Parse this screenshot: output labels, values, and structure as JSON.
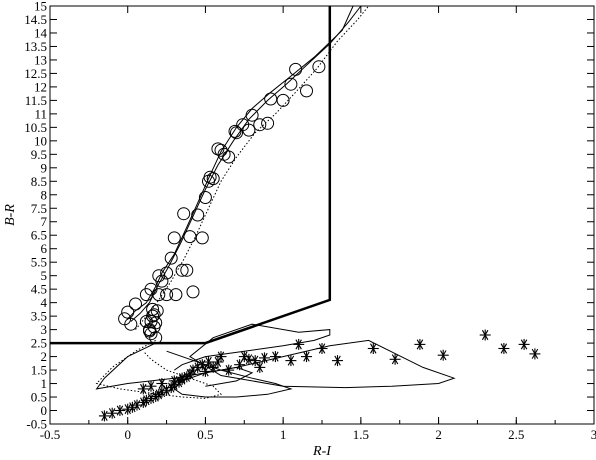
{
  "chart_data": {
    "type": "scatter",
    "title": "",
    "xlabel": "R-I",
    "ylabel": "B-R",
    "xlim": [
      -0.5,
      3
    ],
    "ylim": [
      -0.5,
      15
    ],
    "x_ticks": [
      "-0.5",
      "0",
      "0.5",
      "1",
      "1.5",
      "2",
      "2.5",
      "3"
    ],
    "y_ticks": [
      "-0.5",
      "0",
      "0.5",
      "1",
      "1.5",
      "2",
      "2.5",
      "3",
      "3.5",
      "4",
      "4.5",
      "5",
      "5.5",
      "6",
      "6.5",
      "7",
      "7.5",
      "8",
      "8.5",
      "9",
      "9.5",
      "10",
      "10.5",
      "11",
      "11.5",
      "12",
      "12.5",
      "13",
      "13.5",
      "14",
      "14.5",
      "15"
    ],
    "grid": false,
    "series": [
      {
        "marker": "circle",
        "x": [
          -0.02,
          0.0,
          0.05,
          0.12,
          0.14,
          0.15,
          0.17,
          0.16,
          0.18,
          0.15,
          0.17,
          0.2,
          0.12,
          0.15,
          0.2,
          0.25,
          0.28,
          0.3,
          0.22,
          0.25,
          0.31,
          0.35,
          0.38,
          0.4,
          0.36,
          0.45,
          0.5,
          0.52,
          0.55,
          0.58,
          0.62,
          0.65,
          0.7,
          0.78,
          0.8,
          0.85,
          0.9,
          0.92,
          1.0,
          1.05,
          1.08,
          1.15,
          1.23,
          0.02,
          0.18,
          0.14,
          0.16,
          0.19,
          0.42,
          0.48,
          0.53,
          0.6,
          0.69,
          0.74
        ],
        "y": [
          3.4,
          3.65,
          3.95,
          3.3,
          3.0,
          2.85,
          3.1,
          3.5,
          2.7,
          3.3,
          3.55,
          4.3,
          4.3,
          4.5,
          5.0,
          5.1,
          5.65,
          6.4,
          4.8,
          4.3,
          4.3,
          5.2,
          5.2,
          6.45,
          7.3,
          7.25,
          7.9,
          8.5,
          8.6,
          9.7,
          9.5,
          9.4,
          10.3,
          10.4,
          10.95,
          10.6,
          10.65,
          11.55,
          11.5,
          12.1,
          12.65,
          11.85,
          12.75,
          3.2,
          3.25,
          2.95,
          3.75,
          3.7,
          4.4,
          6.4,
          8.65,
          9.65,
          10.35,
          10.6
        ]
      },
      {
        "marker": "asterisk",
        "x": [
          -0.15,
          -0.1,
          -0.05,
          0.0,
          0.03,
          0.06,
          0.1,
          0.12,
          0.15,
          0.18,
          0.2,
          0.22,
          0.25,
          0.28,
          0.3,
          0.33,
          0.35,
          0.38,
          0.4,
          0.42,
          0.45,
          0.1,
          0.15,
          0.22,
          0.3,
          0.35,
          0.48,
          0.52,
          0.55,
          0.6,
          0.65,
          0.72,
          0.78,
          0.82,
          0.88,
          0.95,
          1.1,
          1.15,
          1.25,
          1.35,
          1.58,
          1.72,
          1.88,
          2.03,
          2.3,
          2.42,
          2.55,
          2.62,
          0.58,
          0.5,
          0.75,
          0.85,
          1.05
        ],
        "y": [
          -0.2,
          -0.1,
          0.0,
          0.05,
          0.12,
          0.2,
          0.3,
          0.38,
          0.45,
          0.52,
          0.6,
          0.68,
          0.75,
          0.85,
          0.95,
          1.05,
          1.15,
          1.25,
          1.35,
          1.5,
          1.6,
          0.8,
          0.9,
          1.0,
          1.1,
          1.2,
          1.7,
          1.8,
          1.6,
          2.0,
          1.5,
          1.7,
          1.9,
          1.85,
          1.95,
          2.0,
          2.45,
          2.0,
          2.3,
          1.85,
          2.3,
          1.9,
          2.45,
          2.05,
          2.8,
          2.3,
          2.45,
          2.1,
          1.8,
          1.45,
          2.0,
          1.6,
          1.85
        ]
      }
    ],
    "lines": [
      {
        "style": "thick",
        "x": [
          -0.5,
          0.5,
          1.3,
          1.3
        ],
        "y": [
          2.5,
          2.5,
          4.1,
          15
        ]
      },
      {
        "style": "solid",
        "x": [
          0.0,
          0.05,
          0.12,
          0.18,
          0.22,
          0.3,
          0.38,
          0.45,
          0.52,
          0.6,
          0.7,
          0.8,
          0.92,
          1.05,
          1.2,
          1.38,
          1.45
        ],
        "y": [
          3.4,
          3.7,
          4.0,
          4.6,
          5.1,
          5.8,
          6.8,
          7.7,
          8.6,
          9.6,
          10.5,
          11.2,
          11.8,
          12.4,
          13.1,
          14.1,
          15.0
        ]
      },
      {
        "style": "solid",
        "x": [
          0.02,
          0.08,
          0.14,
          0.2,
          0.26,
          0.34,
          0.42,
          0.5,
          0.58,
          0.68,
          0.78,
          0.9,
          1.02,
          1.15,
          1.3,
          1.42,
          1.5
        ],
        "y": [
          3.3,
          3.6,
          4.0,
          4.7,
          5.3,
          6.2,
          7.2,
          8.2,
          9.1,
          10.0,
          10.8,
          11.5,
          12.1,
          12.8,
          13.6,
          14.4,
          15.0
        ]
      },
      {
        "style": "dotted",
        "x": [
          0.05,
          0.12,
          0.2,
          0.28,
          0.36,
          0.44,
          0.52,
          0.6,
          0.7,
          0.82,
          0.95,
          1.08,
          1.22,
          1.35,
          1.48,
          1.55
        ],
        "y": [
          3.0,
          3.5,
          4.1,
          4.8,
          5.6,
          6.5,
          7.5,
          8.5,
          9.4,
          10.3,
          11.0,
          11.8,
          12.7,
          13.7,
          14.5,
          15.0
        ]
      },
      {
        "style": "solid",
        "x": [
          0.18,
          0.0,
          -0.15,
          -0.2,
          0.0,
          0.3,
          0.7,
          1.0,
          1.3,
          1.55,
          1.9,
          2.1,
          2.0,
          1.7,
          1.4,
          1.0,
          0.6,
          0.4,
          0.55,
          0.8,
          1.1,
          1.3,
          1.3,
          1.2,
          1.0,
          0.75,
          0.5,
          0.35,
          0.3
        ],
        "y": [
          2.5,
          2.0,
          1.2,
          0.8,
          1.0,
          1.2,
          1.6,
          2.0,
          2.4,
          2.6,
          1.6,
          1.2,
          1.0,
          0.9,
          0.85,
          0.9,
          1.3,
          2.0,
          2.7,
          3.2,
          2.9,
          3.0,
          2.8,
          2.6,
          2.4,
          2.2,
          2.0,
          1.7,
          1.5
        ]
      },
      {
        "style": "solid",
        "x": [
          0.25,
          0.4,
          0.6,
          0.8,
          0.95,
          1.05,
          0.9,
          0.7,
          0.5,
          0.35,
          0.3,
          0.35,
          0.5,
          0.7,
          0.8,
          0.7,
          0.5
        ],
        "y": [
          2.2,
          1.9,
          1.5,
          1.2,
          1.0,
          0.8,
          0.6,
          0.5,
          0.5,
          0.6,
          0.8,
          1.1,
          1.4,
          1.6,
          1.4,
          1.1,
          0.9
        ]
      },
      {
        "style": "dotted",
        "x": [
          0.18,
          0.05,
          -0.1,
          -0.2,
          -0.05,
          0.2,
          0.35,
          0.5,
          0.6,
          0.55,
          0.4,
          0.25,
          0.15,
          0.1
        ],
        "y": [
          2.6,
          2.2,
          1.6,
          1.0,
          0.8,
          0.6,
          0.5,
          0.45,
          0.6,
          0.9,
          1.2,
          1.5,
          1.9,
          2.2
        ]
      }
    ]
  }
}
